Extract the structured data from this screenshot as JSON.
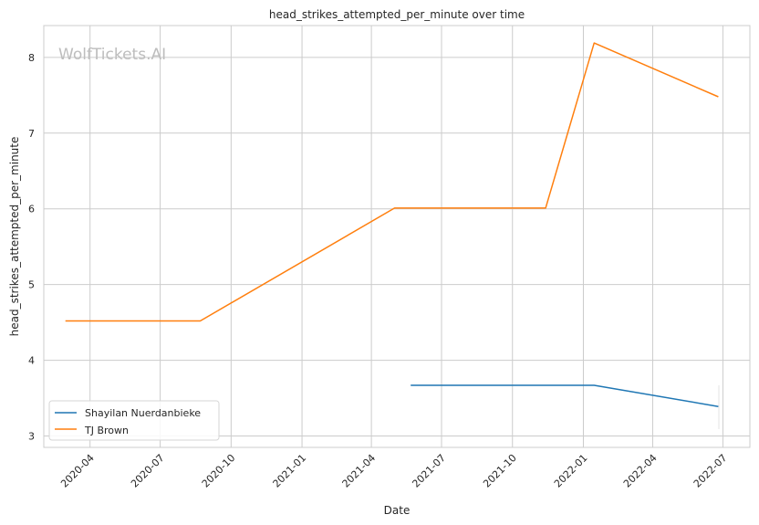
{
  "watermark": "WolfTickets.AI",
  "chart_data": {
    "type": "line",
    "title": "head_strikes_attempted_per_minute over time",
    "xlabel": "Date",
    "ylabel": "head_strikes_attempted_per_minute",
    "x_ticks": [
      "2020-04",
      "2020-07",
      "2020-10",
      "2021-01",
      "2021-04",
      "2021-07",
      "2021-10",
      "2022-01",
      "2022-04",
      "2022-07"
    ],
    "y_ticks": [
      3,
      4,
      5,
      6,
      7,
      8
    ],
    "xlim": [
      "2020-02-01",
      "2022-08-05"
    ],
    "ylim": [
      2.85,
      8.42
    ],
    "grid": true,
    "legend_position": "lower-left",
    "series": [
      {
        "name": "Shayilan Nuerdanbieke",
        "color": "#1f77b4",
        "points": [
          {
            "x": "2021-05-22",
            "y": 3.67
          },
          {
            "x": "2022-01-15",
            "y": 3.67
          },
          {
            "x": "2022-06-25",
            "y": 3.39
          }
        ]
      },
      {
        "name": "TJ Brown",
        "color": "#ff7f0e",
        "points": [
          {
            "x": "2020-02-29",
            "y": 4.52
          },
          {
            "x": "2020-08-22",
            "y": 4.52
          },
          {
            "x": "2021-05-01",
            "y": 6.01
          },
          {
            "x": "2021-11-13",
            "y": 6.01
          },
          {
            "x": "2022-01-15",
            "y": 8.19
          },
          {
            "x": "2022-06-25",
            "y": 7.48
          }
        ]
      }
    ]
  }
}
